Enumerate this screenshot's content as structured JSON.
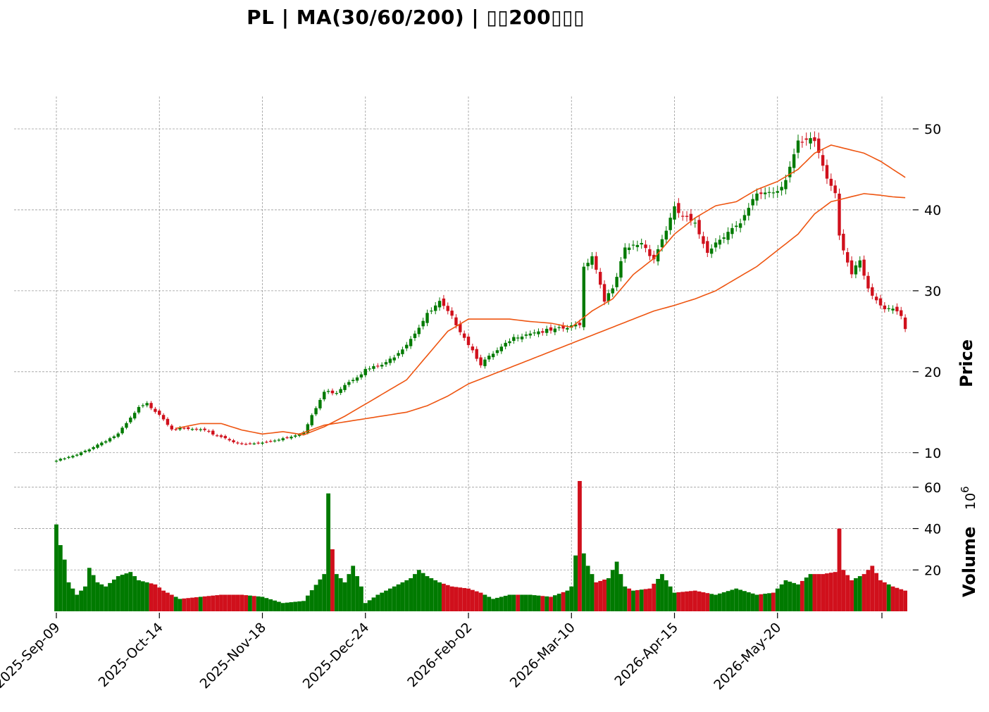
{
  "title": "PL  |  MA(30/60/200)  |  ▯▯200▯▯▯",
  "chart_data": {
    "type": "candlestick",
    "ticker": "PL",
    "moving_averages": [
      30,
      60,
      200
    ],
    "colors": {
      "up": "#007a00",
      "down": "#d0101c",
      "ma30": "#ee5511",
      "ma60": "#ee5511"
    },
    "x_tick_labels": [
      "2025-Sep-09",
      "2025-Oct-14",
      "2025-Nov-18",
      "2025-Dec-24",
      "2026-Feb-02",
      "2026-Mar-10",
      "2026-Apr-15",
      "2026-May-20"
    ],
    "x_tick_bar_index": [
      0,
      25,
      50,
      75,
      100,
      125,
      150,
      175
    ],
    "price_axis": {
      "label": "Price",
      "ticks": [
        10,
        20,
        30,
        40,
        50
      ],
      "ylim": [
        6.5,
        54
      ]
    },
    "volume_axis": {
      "label": "Volume",
      "exponent_label": "10",
      "exponent": "6",
      "ticks": [
        20,
        40,
        60
      ],
      "ylim": [
        0,
        63
      ]
    },
    "close_anchors": [
      [
        0,
        9.0
      ],
      [
        5,
        9.7
      ],
      [
        10,
        11.0
      ],
      [
        15,
        12.3
      ],
      [
        20,
        15.5
      ],
      [
        22,
        16.0
      ],
      [
        25,
        14.8
      ],
      [
        28,
        13.0
      ],
      [
        35,
        12.8
      ],
      [
        40,
        12.0
      ],
      [
        45,
        11.0
      ],
      [
        50,
        11.2
      ],
      [
        55,
        11.8
      ],
      [
        60,
        12.5
      ],
      [
        65,
        17.5
      ],
      [
        68,
        17.5
      ],
      [
        70,
        18.5
      ],
      [
        75,
        20.2
      ],
      [
        80,
        21.0
      ],
      [
        85,
        23.5
      ],
      [
        90,
        27.0
      ],
      [
        93,
        28.5
      ],
      [
        97,
        26.0
      ],
      [
        100,
        23.5
      ],
      [
        103,
        21.0
      ],
      [
        107,
        22.5
      ],
      [
        112,
        24.5
      ],
      [
        116,
        25.0
      ],
      [
        120,
        25.0
      ],
      [
        125,
        25.5
      ],
      [
        127,
        26.0
      ],
      [
        128,
        33.0
      ],
      [
        130,
        34.5
      ],
      [
        133,
        29.0
      ],
      [
        135,
        30.0
      ],
      [
        138,
        35.0
      ],
      [
        142,
        36.0
      ],
      [
        145,
        34.0
      ],
      [
        150,
        40.0
      ],
      [
        155,
        38.0
      ],
      [
        158,
        35.0
      ],
      [
        163,
        37.5
      ],
      [
        166,
        38.0
      ],
      [
        170,
        42.0
      ],
      [
        175,
        42.5
      ],
      [
        177,
        44.0
      ],
      [
        180,
        48.0
      ],
      [
        184,
        48.5
      ],
      [
        187,
        44.0
      ],
      [
        189,
        42.5
      ],
      [
        190,
        37.0
      ],
      [
        193,
        32.0
      ],
      [
        195,
        33.5
      ],
      [
        197,
        30.0
      ],
      [
        200,
        28.0
      ],
      [
        203,
        28.0
      ],
      [
        205,
        27.0
      ],
      [
        206,
        25.5
      ]
    ],
    "ma30": [
      [
        29,
        13.0
      ],
      [
        35,
        13.6
      ],
      [
        40,
        13.6
      ],
      [
        45,
        12.8
      ],
      [
        50,
        12.3
      ],
      [
        55,
        12.6
      ],
      [
        60,
        12.2
      ],
      [
        65,
        13.2
      ],
      [
        70,
        14.5
      ],
      [
        75,
        16.0
      ],
      [
        80,
        17.5
      ],
      [
        85,
        19.0
      ],
      [
        90,
        22.0
      ],
      [
        95,
        25.0
      ],
      [
        100,
        26.5
      ],
      [
        105,
        26.5
      ],
      [
        110,
        26.5
      ],
      [
        115,
        26.2
      ],
      [
        120,
        26.0
      ],
      [
        125,
        25.5
      ],
      [
        130,
        27.5
      ],
      [
        135,
        29.0
      ],
      [
        140,
        32.0
      ],
      [
        145,
        34.0
      ],
      [
        150,
        37.0
      ],
      [
        155,
        39.0
      ],
      [
        160,
        40.5
      ],
      [
        165,
        41.0
      ],
      [
        170,
        42.5
      ],
      [
        175,
        43.5
      ],
      [
        180,
        45.0
      ],
      [
        184,
        47.0
      ],
      [
        188,
        48.0
      ],
      [
        192,
        47.5
      ],
      [
        196,
        47.0
      ],
      [
        200,
        46.0
      ],
      [
        203,
        45.0
      ],
      [
        206,
        44.0
      ]
    ],
    "ma60": [
      [
        59,
        12.3
      ],
      [
        65,
        13.4
      ],
      [
        70,
        13.8
      ],
      [
        75,
        14.2
      ],
      [
        80,
        14.6
      ],
      [
        85,
        15.0
      ],
      [
        90,
        15.8
      ],
      [
        95,
        17.0
      ],
      [
        100,
        18.5
      ],
      [
        105,
        19.5
      ],
      [
        110,
        20.5
      ],
      [
        115,
        21.5
      ],
      [
        120,
        22.5
      ],
      [
        125,
        23.5
      ],
      [
        130,
        24.5
      ],
      [
        135,
        25.5
      ],
      [
        140,
        26.5
      ],
      [
        145,
        27.5
      ],
      [
        150,
        28.2
      ],
      [
        155,
        29.0
      ],
      [
        160,
        30.0
      ],
      [
        165,
        31.5
      ],
      [
        170,
        33.0
      ],
      [
        175,
        35.0
      ],
      [
        180,
        37.0
      ],
      [
        184,
        39.5
      ],
      [
        188,
        41.0
      ],
      [
        192,
        41.5
      ],
      [
        196,
        42.0
      ],
      [
        200,
        41.8
      ],
      [
        203,
        41.6
      ],
      [
        206,
        41.5
      ]
    ],
    "volume_anchors": [
      [
        0,
        42
      ],
      [
        1,
        32
      ],
      [
        2,
        25
      ],
      [
        3,
        14
      ],
      [
        5,
        8
      ],
      [
        7,
        12
      ],
      [
        8,
        21
      ],
      [
        10,
        14
      ],
      [
        12,
        12
      ],
      [
        15,
        17
      ],
      [
        18,
        19
      ],
      [
        20,
        15
      ],
      [
        22,
        14
      ],
      [
        24,
        13
      ],
      [
        26,
        10
      ],
      [
        30,
        6
      ],
      [
        40,
        8
      ],
      [
        45,
        8
      ],
      [
        50,
        7
      ],
      [
        55,
        4
      ],
      [
        60,
        5
      ],
      [
        65,
        18
      ],
      [
        66,
        57
      ],
      [
        67,
        30
      ],
      [
        68,
        18
      ],
      [
        70,
        14
      ],
      [
        72,
        22
      ],
      [
        74,
        12
      ],
      [
        75,
        4
      ],
      [
        78,
        8
      ],
      [
        80,
        10
      ],
      [
        83,
        13
      ],
      [
        86,
        16
      ],
      [
        88,
        20
      ],
      [
        90,
        17
      ],
      [
        93,
        14
      ],
      [
        96,
        12
      ],
      [
        100,
        11
      ],
      [
        103,
        9
      ],
      [
        106,
        6
      ],
      [
        110,
        8
      ],
      [
        115,
        8
      ],
      [
        120,
        7
      ],
      [
        124,
        10
      ],
      [
        125,
        12
      ],
      [
        126,
        27
      ],
      [
        127,
        63
      ],
      [
        128,
        28
      ],
      [
        129,
        22
      ],
      [
        131,
        14
      ],
      [
        134,
        16
      ],
      [
        136,
        24
      ],
      [
        138,
        12
      ],
      [
        140,
        10
      ],
      [
        144,
        11
      ],
      [
        147,
        18
      ],
      [
        150,
        9
      ],
      [
        155,
        10
      ],
      [
        160,
        8
      ],
      [
        165,
        11
      ],
      [
        170,
        8
      ],
      [
        174,
        9
      ],
      [
        177,
        15
      ],
      [
        180,
        13
      ],
      [
        183,
        18
      ],
      [
        186,
        18
      ],
      [
        189,
        19
      ],
      [
        190,
        40
      ],
      [
        191,
        20
      ],
      [
        193,
        15
      ],
      [
        196,
        18
      ],
      [
        198,
        22
      ],
      [
        200,
        15
      ],
      [
        203,
        12
      ],
      [
        206,
        10
      ]
    ]
  }
}
